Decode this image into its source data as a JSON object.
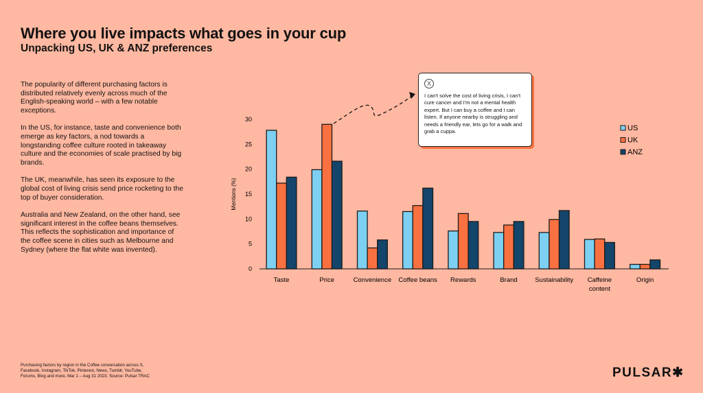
{
  "header": {
    "title": "Where you live impacts what goes in your cup",
    "subtitle": "Unpacking US, UK & ANZ preferences"
  },
  "body": [
    "The popularity of different purchasing factors is distributed relatively evenly across much of the English-speaking world – with a few notable exceptions.",
    "In the US, for instance, taste and convenience both emerge as key factors, a nod towards a longstanding coffee culture rooted in takeaway culture and the economies of scale practised by big brands.",
    "The UK, meanwhile, has seen its exposure to the global cost of living crisis send price rocketing to the top of buyer consideration.",
    "Australia and New Zealand, on the other hand, see significant interest in the coffee beans themselves. This reflects the sophistication and importance of the coffee scene in cities such as Melbourne and Sydney (where the flat white was invented)."
  ],
  "quote": {
    "icon": "x-logo-icon",
    "text": "I can't solve the cost of living crisis, I can't cure cancer and I'm not a mental health expert. But I can buy a coffee and I can listen. If anyone nearby is struggling and needs a friendly ear, lets go for a walk and grab a cuppa."
  },
  "footnote": "Purchasing factors by region in the Coffee conversation across X, Facebook, Instagram, TikTok, Pinterest, News, Tumblr, YouTube, Forums, Blog and more, Mar 1 – Aug 31 2023. Source: Pulsar TRAC",
  "logo": "PULSAR✱",
  "chart_data": {
    "type": "bar",
    "ylabel": "Mentions (%)",
    "ylim": [
      0,
      30
    ],
    "yticks": [
      0,
      5,
      10,
      15,
      20,
      25,
      30
    ],
    "grid": false,
    "legend_position": "top-right",
    "categories": [
      "Taste",
      "Price",
      "Convenience",
      "Coffee beans",
      "Rewards",
      "Brand",
      "Sustainability",
      "Caffeine content",
      "Origin"
    ],
    "series": [
      {
        "name": "US",
        "color": "#7DD0F2",
        "values": [
          27.8,
          19.9,
          11.6,
          11.5,
          7.6,
          7.3,
          7.3,
          5.9,
          0.9
        ]
      },
      {
        "name": "UK",
        "color": "#F97140",
        "values": [
          17.2,
          29.0,
          4.2,
          12.7,
          11.1,
          8.8,
          9.9,
          6.0,
          0.9
        ]
      },
      {
        "name": "ANZ",
        "color": "#14456B",
        "values": [
          18.4,
          21.6,
          5.8,
          16.2,
          9.5,
          9.5,
          11.7,
          5.3,
          1.8
        ]
      }
    ]
  }
}
